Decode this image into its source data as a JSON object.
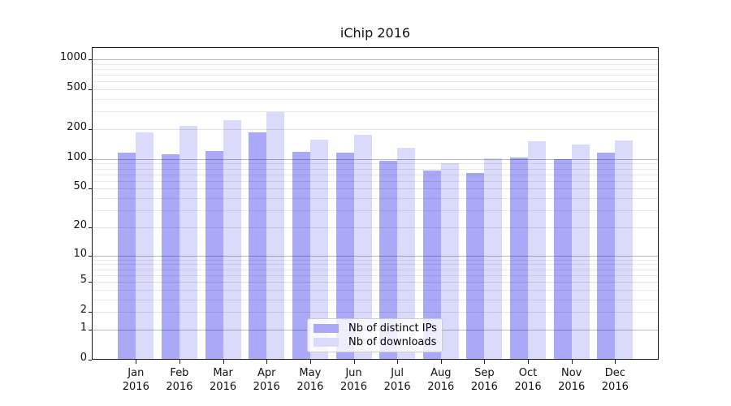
{
  "chart_data": {
    "type": "bar",
    "title": "iChip 2016",
    "categories": [
      "Jan",
      "Feb",
      "Mar",
      "Apr",
      "May",
      "Jun",
      "Jul",
      "Aug",
      "Sep",
      "Oct",
      "Nov",
      "Dec"
    ],
    "category_year": "2016",
    "series": [
      {
        "name": "Nb of distinct IPs",
        "color": "#a9a9f7",
        "values": [
          115,
          112,
          120,
          185,
          119,
          115,
          96,
          77,
          73,
          104,
          100,
          115
        ]
      },
      {
        "name": "Nb of downloads",
        "color": "#dadafb",
        "values": [
          187,
          215,
          247,
          297,
          156,
          176,
          130,
          91,
          102,
          150,
          141,
          154
        ]
      }
    ],
    "yscale": "log1p",
    "y_tick_labels": [
      0,
      1,
      2,
      5,
      10,
      20,
      50,
      100,
      200,
      500,
      1000
    ],
    "ylim": [
      0,
      1320
    ],
    "xlabel": "",
    "ylabel": "",
    "grid": "horizontal, major and minor",
    "legend_position": "inside bottom-center"
  }
}
